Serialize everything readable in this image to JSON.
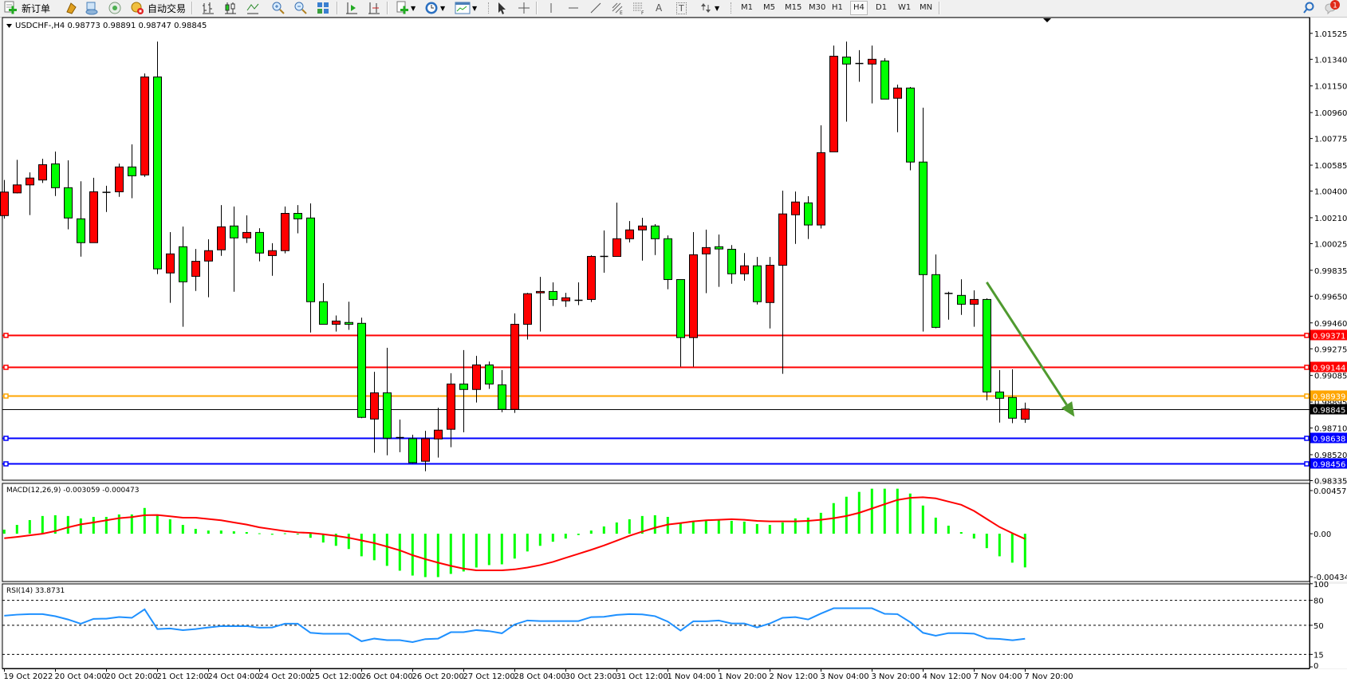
{
  "toolbar": {
    "new_order": "新订单",
    "auto_trading": "自动交易",
    "periods": [
      "M1",
      "M5",
      "M15",
      "M30",
      "H1",
      "H4",
      "D1",
      "W1",
      "MN"
    ],
    "active_period": "H4",
    "notification_count": "1",
    "icons": [
      "new-order-icon",
      "metaeditor-icon",
      "community-icon",
      "signals-icon",
      "auto-trading-icon",
      "bar-chart-icon",
      "candlestick-icon",
      "line-chart-icon",
      "zoom-in-icon",
      "zoom-out-icon",
      "tile-windows-icon",
      "auto-scroll-icon",
      "chart-shift-icon",
      "indicators-icon",
      "periods-clock-icon",
      "templates-icon",
      "cursor-icon",
      "crosshair-icon",
      "vertical-line-icon",
      "horizontal-line-icon",
      "trendline-icon",
      "fibonacci-icon",
      "fibonacci-fan-icon",
      "text-icon",
      "label-icon",
      "arrows-icon",
      "search-icon",
      "notification-icon"
    ],
    "text_tool": "A",
    "label_tool": "T"
  },
  "chart": {
    "header": "USDCHF-,H4  0.98773 0.98891 0.98747 0.98845",
    "price_ticks": [
      "1.01525",
      "1.01340",
      "1.01150",
      "1.00960",
      "1.00775",
      "1.00585",
      "1.00400",
      "1.00210",
      "1.00025",
      "0.99835",
      "0.99650",
      "0.99460",
      "0.99275",
      "0.99085",
      "0.98895",
      "0.98710",
      "0.98520",
      "0.98335"
    ],
    "bid": {
      "price": 0.98845,
      "label": "0.98845",
      "color": "#000000"
    },
    "hlines": [
      {
        "price": 0.99371,
        "label": "0.99371",
        "color": "#ff0000"
      },
      {
        "price": 0.99144,
        "label": "0.99144",
        "color": "#ff0000"
      },
      {
        "price": 0.98939,
        "label": "0.98939",
        "color": "#ffa500"
      },
      {
        "price": 0.98638,
        "label": "0.98638",
        "color": "#0000ff"
      },
      {
        "price": 0.98456,
        "label": "0.98456",
        "color": "#0000ff"
      }
    ],
    "arrow": {
      "color": "#4f9a2f",
      "from": {
        "index": 77,
        "price": 0.9975
      },
      "to": {
        "index": 83,
        "price": 0.9879
      }
    },
    "up_color": "#ff0000",
    "down_color": "#00ff00",
    "time_labels": [
      "19 Oct 2022",
      "20 Oct 04:00",
      "20 Oct 20:00",
      "21 Oct 12:00",
      "24 Oct 04:00",
      "24 Oct 20:00",
      "25 Oct 12:00",
      "26 Oct 04:00",
      "26 Oct 20:00",
      "27 Oct 12:00",
      "28 Oct 04:00",
      "30 Oct 23:00",
      "31 Oct 12:00",
      "1 Nov 04:00",
      "1 Nov 20:00",
      "2 Nov 12:00",
      "3 Nov 04:00",
      "3 Nov 20:00",
      "4 Nov 12:00",
      "7 Nov 04:00",
      "7 Nov 20:00"
    ]
  },
  "macd": {
    "title": "MACD(12,26,9) -0.003059 -0.000473",
    "ticks": [
      "0.004572",
      "0.00",
      "-0.004341"
    ],
    "hist_color": "#00ff00",
    "signal_color": "#ff0000"
  },
  "rsi": {
    "title": "RSI(14) 33.8731",
    "ticks": [
      "100",
      "80",
      "50",
      "15",
      "0"
    ],
    "color": "#1e90ff"
  },
  "chart_data": {
    "type": "candlestick",
    "symbol": "USDCHF-",
    "timeframe": "H4",
    "ylim": [
      0.98335,
      1.01525
    ],
    "ohlc": [
      [
        1.00225,
        1.00479,
        1.00204,
        1.00393
      ],
      [
        1.00387,
        1.00623,
        1.00383,
        1.00444
      ],
      [
        1.00444,
        1.00533,
        1.00229,
        1.00493
      ],
      [
        1.00479,
        1.00631,
        1.00458,
        1.00588
      ],
      [
        1.00594,
        1.00682,
        1.00365,
        1.00424
      ],
      [
        1.00424,
        1.00619,
        1.00127,
        1.00208
      ],
      [
        1.00202,
        1.0047,
        0.99932,
        1.00032
      ],
      [
        1.00032,
        1.00495,
        1.00032,
        1.00395
      ],
      [
        1.00391,
        1.00438,
        1.00251,
        1.00391
      ],
      [
        1.00395,
        1.00596,
        1.00359,
        1.00572
      ],
      [
        1.00572,
        1.00733,
        1.00349,
        1.00509
      ],
      [
        1.00515,
        1.01239,
        1.00501,
        1.01214
      ],
      [
        1.01214,
        1.01466,
        0.99808,
        0.99845
      ],
      [
        0.99816,
        1.00107,
        0.99603,
        0.99952
      ],
      [
        1.00003,
        1.00147,
        0.99432,
        0.99753
      ],
      [
        0.99792,
        0.99987,
        0.99688,
        0.99899
      ],
      [
        0.99901,
        1.00056,
        0.99643,
        0.99975
      ],
      [
        0.99981,
        1.003,
        0.99938,
        1.00145
      ],
      [
        1.00151,
        1.0029,
        0.99682,
        1.00066
      ],
      [
        1.00066,
        1.00227,
        1.0003,
        1.00105
      ],
      [
        1.00105,
        1.00135,
        0.99899,
        0.99958
      ],
      [
        0.9994,
        1.00028,
        0.99796,
        0.99975
      ],
      [
        0.99975,
        1.0029,
        0.99956,
        1.00241
      ],
      [
        1.00241,
        1.003,
        1.00099,
        1.00202
      ],
      [
        1.00208,
        1.00312,
        0.99391,
        0.99611
      ],
      [
        0.99611,
        0.99743,
        0.9945,
        0.9945
      ],
      [
        0.9945,
        0.99513,
        0.99398,
        0.99473
      ],
      [
        0.99463,
        0.99611,
        0.9941,
        0.9945
      ],
      [
        0.99457,
        0.99497,
        0.9878,
        0.98786
      ],
      [
        0.98774,
        0.99111,
        0.98534,
        0.98961
      ],
      [
        0.98961,
        0.99282,
        0.98516,
        0.98638
      ],
      [
        0.98642,
        0.9877,
        0.98538,
        0.98642
      ],
      [
        0.98634,
        0.98662,
        0.98457,
        0.98463
      ],
      [
        0.98473,
        0.9869,
        0.98402,
        0.98634
      ],
      [
        0.98632,
        0.98855,
        0.98499,
        0.98695
      ],
      [
        0.98701,
        0.99101,
        0.98573,
        0.99024
      ],
      [
        0.99024,
        0.99266,
        0.9868,
        0.98985
      ],
      [
        0.98985,
        0.99225,
        0.98892,
        0.9916
      ],
      [
        0.9916,
        0.99184,
        0.98989,
        0.99024
      ],
      [
        0.99018,
        0.99123,
        0.98823,
        0.98843
      ],
      [
        0.98843,
        0.99528,
        0.98818,
        0.9945
      ],
      [
        0.9945,
        0.99674,
        0.99341,
        0.99668
      ],
      [
        0.99674,
        0.99788,
        0.99398,
        0.99684
      ],
      [
        0.99684,
        0.99749,
        0.9958,
        0.99627
      ],
      [
        0.99617,
        0.99674,
        0.99574,
        0.99639
      ],
      [
        0.99621,
        0.99749,
        0.99587,
        0.99621
      ],
      [
        0.99627,
        0.99942,
        0.99609,
        0.99934
      ],
      [
        0.99934,
        1.00119,
        0.99818,
        0.99934
      ],
      [
        0.99934,
        1.00318,
        0.99934,
        1.0006
      ],
      [
        1.0006,
        1.00186,
        1.00034,
        1.00123
      ],
      [
        1.00123,
        1.0021,
        0.99904,
        1.00151
      ],
      [
        1.00151,
        1.00164,
        0.99944,
        1.0006
      ],
      [
        1.0006,
        1.00084,
        0.997,
        0.99769
      ],
      [
        0.99769,
        0.99769,
        0.99148,
        0.99355
      ],
      [
        0.99355,
        1.00107,
        0.99148,
        0.99946
      ],
      [
        0.99952,
        1.00125,
        0.99672,
        0.99997
      ],
      [
        1.00003,
        1.0009,
        0.99717,
        0.99987
      ],
      [
        0.99985,
        1.00015,
        0.99739,
        0.9981
      ],
      [
        0.9981,
        0.99958,
        0.99761,
        0.99867
      ],
      [
        0.99867,
        0.9993,
        0.99591,
        0.99611
      ],
      [
        0.99605,
        0.9993,
        0.9942,
        0.99871
      ],
      [
        0.99871,
        1.00403,
        0.99097,
        1.00237
      ],
      [
        1.00231,
        1.00397,
        1.00023,
        1.00322
      ],
      [
        1.00316,
        1.00363,
        1.00058,
        1.00158
      ],
      [
        1.00158,
        1.00869,
        1.00133,
        1.00674
      ],
      [
        1.0068,
        1.01438,
        1.0068,
        1.01362
      ],
      [
        1.01356,
        1.01466,
        1.00895,
        1.01306
      ],
      [
        1.0131,
        1.01405,
        1.0118,
        1.0131
      ],
      [
        1.01306,
        1.01438,
        1.01025,
        1.0134
      ],
      [
        1.01328,
        1.01348,
        1.01056,
        1.01056
      ],
      [
        1.01062,
        1.01159,
        1.0082,
        1.01135
      ],
      [
        1.01135,
        1.01143,
        1.00548,
        1.00607
      ],
      [
        1.00607,
        1.00995,
        0.99398,
        0.99804
      ],
      [
        0.99804,
        0.99948,
        0.99422,
        0.99428
      ],
      [
        0.9967,
        0.99682,
        0.99483,
        0.9967
      ],
      [
        0.99656,
        0.99771,
        0.99517,
        0.99593
      ],
      [
        0.99593,
        0.99692,
        0.99432,
        0.99627
      ],
      [
        0.99627,
        0.99635,
        0.98908,
        0.98967
      ],
      [
        0.98967,
        0.99123,
        0.98749,
        0.98922
      ],
      [
        0.98928,
        0.99129,
        0.98745,
        0.9878
      ],
      [
        0.98773,
        0.98891,
        0.98747,
        0.98845
      ]
    ],
    "macd_hist": [
      0.00037,
      0.0008,
      0.00124,
      0.00161,
      0.00168,
      0.00161,
      0.00139,
      0.00153,
      0.00153,
      0.00175,
      0.00175,
      0.00234,
      0.00168,
      0.00131,
      0.0008,
      0.00044,
      0.00029,
      0.00029,
      0.00022,
      0.00015,
      4e-05,
      -9e-05,
      4e-05,
      -2e-05,
      -0.00037,
      -0.0008,
      -0.0011,
      -0.00139,
      -0.00205,
      -0.00241,
      -0.00292,
      -0.00336,
      -0.0038,
      -0.00394,
      -0.00394,
      -0.00365,
      -0.00343,
      -0.00307,
      -0.00285,
      -0.00278,
      -0.00226,
      -0.00161,
      -0.0011,
      -0.00073,
      -0.00044,
      -0.00012,
      0.00029,
      0.00066,
      0.00102,
      0.00131,
      0.00161,
      0.00168,
      0.00153,
      0.00095,
      0.0011,
      0.00124,
      0.00124,
      0.00117,
      0.0011,
      0.00088,
      0.0008,
      0.00102,
      0.00139,
      0.00146,
      0.0019,
      0.00278,
      0.00336,
      0.0038,
      0.00409,
      0.00409,
      0.00409,
      0.00365,
      0.00256,
      0.00146,
      0.00073,
      0.00015,
      -0.00044,
      -0.00131,
      -0.00205,
      -0.00263,
      -0.003059
    ],
    "macd_signal": [
      -0.00041,
      -0.00029,
      -0.00015,
      0.0,
      0.00024,
      0.00058,
      0.00085,
      0.00102,
      0.00122,
      0.00141,
      0.00151,
      0.00168,
      0.0017,
      0.00158,
      0.00146,
      0.00146,
      0.00134,
      0.00122,
      0.00102,
      0.00083,
      0.00058,
      0.00041,
      0.00024,
      0.00012,
      7e-05,
      -5e-05,
      -0.00019,
      -0.00037,
      -0.00061,
      -0.00085,
      -0.00117,
      -0.00151,
      -0.00195,
      -0.00231,
      -0.00263,
      -0.00292,
      -0.00317,
      -0.00333,
      -0.00333,
      -0.00333,
      -0.00324,
      -0.00307,
      -0.00285,
      -0.00256,
      -0.00219,
      -0.00183,
      -0.00146,
      -0.00107,
      -0.00063,
      -0.00019,
      0.00019,
      0.00054,
      0.00083,
      0.00097,
      0.00112,
      0.00122,
      0.00127,
      0.00132,
      0.00127,
      0.00117,
      0.00112,
      0.00112,
      0.00112,
      0.00117,
      0.00127,
      0.00141,
      0.00161,
      0.0019,
      0.00229,
      0.00268,
      0.00307,
      0.00326,
      0.00331,
      0.00321,
      0.00292,
      0.00263,
      0.00207,
      0.00134,
      0.00061,
      5e-05,
      -0.000473
    ],
    "macd_range": [
      -0.004341,
      0.004572
    ],
    "rsi": [
      61.5,
      62.8,
      63.4,
      63.4,
      60.9,
      57.0,
      51.9,
      57.7,
      58.0,
      60.0,
      59.0,
      69.2,
      45.5,
      46.2,
      44.2,
      45.5,
      47.4,
      49.0,
      49.0,
      49.0,
      47.1,
      47.4,
      51.9,
      51.9,
      41.0,
      39.8,
      39.8,
      39.8,
      30.8,
      34.0,
      32.1,
      32.1,
      29.8,
      33.4,
      34.0,
      41.7,
      41.7,
      44.2,
      43.0,
      40.4,
      51.0,
      55.8,
      55.1,
      55.1,
      55.1,
      55.1,
      59.9,
      60.2,
      62.5,
      63.4,
      63.1,
      61.0,
      54.5,
      43.6,
      54.8,
      54.8,
      55.8,
      52.2,
      52.2,
      47.4,
      52.2,
      59.0,
      59.9,
      57.0,
      64.1,
      70.5,
      70.5,
      70.5,
      70.5,
      63.8,
      63.4,
      53.8,
      41.0,
      37.4,
      40.6,
      40.6,
      40.0,
      34.2,
      33.6,
      32.0,
      33.8731
    ],
    "rsi_levels": [
      80,
      50,
      15
    ]
  }
}
